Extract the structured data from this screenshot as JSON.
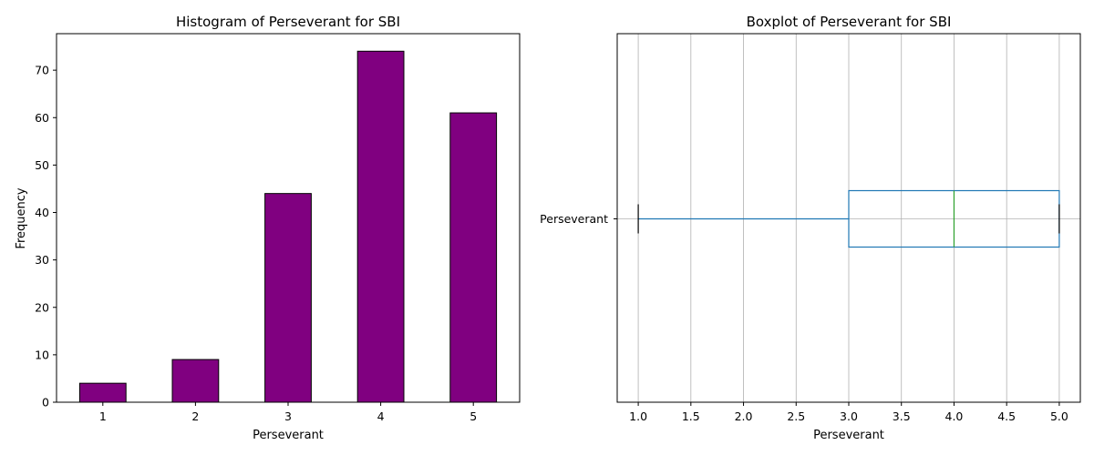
{
  "chart_data": [
    {
      "type": "bar",
      "title": "Histogram of Perseverant for SBI",
      "xlabel": "Perseverant",
      "ylabel": "Frequency",
      "categories": [
        "1",
        "2",
        "3",
        "4",
        "5"
      ],
      "values": [
        4,
        9,
        44,
        74,
        61
      ],
      "ylim": [
        0,
        77.7
      ],
      "yticks": [
        "0",
        "10",
        "20",
        "30",
        "40",
        "50",
        "60",
        "70"
      ],
      "bar_color": "#800080",
      "edge_color": "#000000",
      "grid": false
    },
    {
      "type": "boxplot",
      "title": "Boxplot of Perseverant for SBI",
      "xlabel": "Perseverant",
      "category": "Perseverant",
      "orientation": "horizontal",
      "stats": {
        "min": 1.0,
        "q1": 3.0,
        "median": 4.0,
        "q3": 5.0,
        "max": 5.0
      },
      "xlim": [
        0.8,
        5.2
      ],
      "xticks": [
        "1.0",
        "1.5",
        "2.0",
        "2.5",
        "3.0",
        "3.5",
        "4.0",
        "4.5",
        "5.0"
      ],
      "box_color": "#1f77b4",
      "median_color": "#2ca02c",
      "cap_color": "#000000",
      "grid": true
    }
  ]
}
